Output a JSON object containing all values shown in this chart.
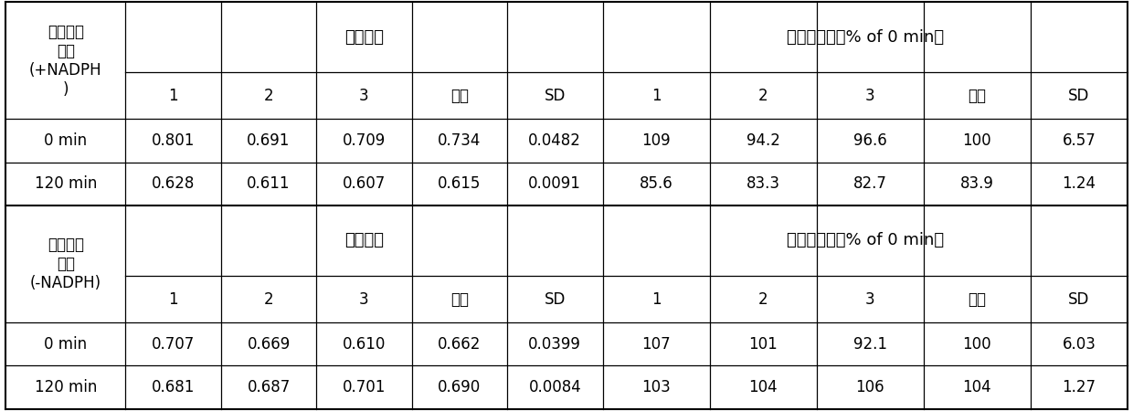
{
  "figsize": [
    12.4,
    4.5
  ],
  "dpi": 100,
  "background_color": "#ffffff",
  "positive_label": "阳性质控\n体系\n(+NADPH\n)",
  "negative_label": "阴性质控\n体系\n(-NADPH)",
  "header_peak": "峰面积比",
  "header_parent": "母体剩余率（% of 0 min）",
  "sub_headers": [
    "1",
    "2",
    "3",
    "平均",
    "SD",
    "1",
    "2",
    "3",
    "平均",
    "SD"
  ],
  "positive_rows": [
    [
      "0 min",
      "0.801",
      "0.691",
      "0.709",
      "0.734",
      "0.0482",
      "109",
      "94.2",
      "96.6",
      "100",
      "6.57"
    ],
    [
      "120 min",
      "0.628",
      "0.611",
      "0.607",
      "0.615",
      "0.0091",
      "85.6",
      "83.3",
      "82.7",
      "83.9",
      "1.24"
    ]
  ],
  "negative_rows": [
    [
      "0 min",
      "0.707",
      "0.669",
      "0.610",
      "0.662",
      "0.0399",
      "107",
      "101",
      "92.1",
      "100",
      "6.03"
    ],
    [
      "120 min",
      "0.681",
      "0.687",
      "0.701",
      "0.690",
      "0.0084",
      "103",
      "104",
      "106",
      "104",
      "1.27"
    ]
  ],
  "font_size": 12,
  "header_font_size": 13
}
